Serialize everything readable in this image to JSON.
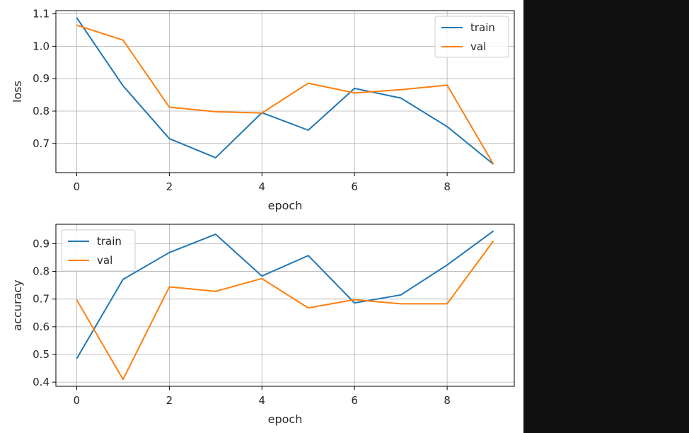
{
  "chart_data": [
    {
      "type": "line",
      "xlabel": "epoch",
      "ylabel": "loss",
      "xlim": [
        -0.45,
        9.45
      ],
      "ylim": [
        0.61,
        1.11
      ],
      "xticks": [
        "0",
        "2",
        "4",
        "6",
        "8"
      ],
      "yticks": [
        "0.7",
        "0.8",
        "0.9",
        "1.0",
        "1.1"
      ],
      "grid": true,
      "legend": "top-right",
      "x": [
        0,
        1,
        2,
        3,
        4,
        5,
        6,
        7,
        8,
        9
      ],
      "series": [
        {
          "name": "train",
          "color": "#1f77b4",
          "values": [
            1.088,
            0.878,
            0.715,
            0.656,
            0.795,
            0.741,
            0.87,
            0.84,
            0.752,
            0.636
          ]
        },
        {
          "name": "val",
          "color": "#ff7f0e",
          "values": [
            1.065,
            1.019,
            0.812,
            0.798,
            0.794,
            0.886,
            0.856,
            0.866,
            0.88,
            0.636
          ]
        }
      ]
    },
    {
      "type": "line",
      "xlabel": "epoch",
      "ylabel": "accuracy",
      "xlim": [
        -0.45,
        9.45
      ],
      "ylim": [
        0.385,
        0.97
      ],
      "xticks": [
        "0",
        "2",
        "4",
        "6",
        "8"
      ],
      "yticks": [
        "0.4",
        "0.5",
        "0.6",
        "0.7",
        "0.8",
        "0.9"
      ],
      "grid": true,
      "legend": "top-left",
      "x": [
        0,
        1,
        2,
        3,
        4,
        5,
        6,
        7,
        8,
        9
      ],
      "series": [
        {
          "name": "train",
          "color": "#1f77b4",
          "values": [
            0.485,
            0.771,
            0.868,
            0.934,
            0.783,
            0.857,
            0.686,
            0.715,
            0.823,
            0.946
          ]
        },
        {
          "name": "val",
          "color": "#ff7f0e",
          "values": [
            0.697,
            0.41,
            0.744,
            0.728,
            0.774,
            0.668,
            0.698,
            0.683,
            0.683,
            0.91
          ]
        }
      ]
    }
  ]
}
